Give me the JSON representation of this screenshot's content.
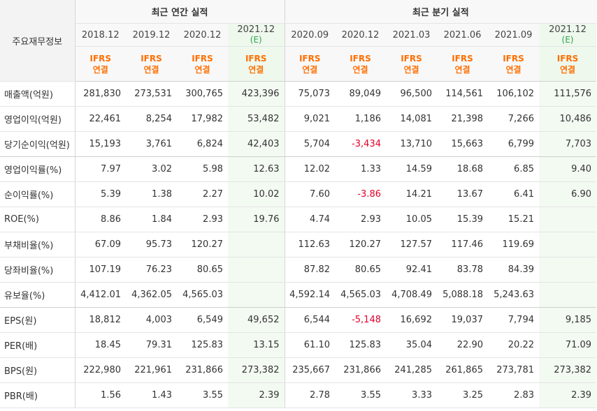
{
  "header": {
    "row_label": "주요재무정보",
    "annual_title": "최근 연간 실적",
    "quarterly_title": "최근 분기 실적",
    "periods": [
      "2018.12",
      "2019.12",
      "2020.12",
      "2021.12",
      "2020.09",
      "2020.12",
      "2021.03",
      "2021.06",
      "2021.09",
      "2021.12"
    ],
    "estimate_mark": "(E)",
    "basis_top": "IFRS",
    "basis_bottom": "연결"
  },
  "rows": [
    {
      "label": "매출액(억원)",
      "values": [
        "281,830",
        "273,531",
        "300,765",
        "423,396",
        "75,073",
        "89,049",
        "96,500",
        "114,561",
        "106,102",
        "111,576"
      ]
    },
    {
      "label": "영업이익(억원)",
      "values": [
        "22,461",
        "8,254",
        "17,982",
        "53,482",
        "9,021",
        "1,186",
        "14,081",
        "21,398",
        "7,266",
        "10,486"
      ]
    },
    {
      "label": "당기순이익(억원)",
      "values": [
        "15,193",
        "3,761",
        "6,824",
        "42,403",
        "5,704",
        "-3,434",
        "13,710",
        "15,663",
        "6,799",
        "7,703"
      ]
    },
    {
      "label": "영업이익률(%)",
      "values": [
        "7.97",
        "3.02",
        "5.98",
        "12.63",
        "12.02",
        "1.33",
        "14.59",
        "18.68",
        "6.85",
        "9.40"
      ]
    },
    {
      "label": "순이익률(%)",
      "values": [
        "5.39",
        "1.38",
        "2.27",
        "10.02",
        "7.60",
        "-3.86",
        "14.21",
        "13.67",
        "6.41",
        "6.90"
      ]
    },
    {
      "label": "ROE(%)",
      "values": [
        "8.86",
        "1.84",
        "2.93",
        "19.76",
        "4.74",
        "2.93",
        "10.05",
        "15.39",
        "15.21",
        ""
      ]
    },
    {
      "label": "부채비율(%)",
      "values": [
        "67.09",
        "95.73",
        "120.27",
        "",
        "112.63",
        "120.27",
        "127.57",
        "117.46",
        "119.69",
        ""
      ]
    },
    {
      "label": "당좌비율(%)",
      "values": [
        "107.19",
        "76.23",
        "80.65",
        "",
        "87.82",
        "80.65",
        "92.41",
        "83.78",
        "84.39",
        ""
      ]
    },
    {
      "label": "유보율(%)",
      "values": [
        "4,412.01",
        "4,362.05",
        "4,565.03",
        "",
        "4,592.14",
        "4,565.03",
        "4,708.49",
        "5,088.18",
        "5,243.63",
        ""
      ]
    },
    {
      "label": "EPS(원)",
      "values": [
        "18,812",
        "4,003",
        "6,549",
        "49,652",
        "6,544",
        "-5,148",
        "16,692",
        "19,037",
        "7,794",
        "9,185"
      ]
    },
    {
      "label": "PER(배)",
      "values": [
        "18.45",
        "79.31",
        "125.83",
        "13.15",
        "61.10",
        "125.83",
        "35.04",
        "22.90",
        "20.22",
        "71.09"
      ]
    },
    {
      "label": "BPS(원)",
      "values": [
        "222,980",
        "221,961",
        "231,866",
        "273,382",
        "235,667",
        "231,866",
        "241,285",
        "261,865",
        "273,781",
        "273,382"
      ]
    },
    {
      "label": "PBR(배)",
      "values": [
        "1.56",
        "1.43",
        "3.55",
        "2.39",
        "2.78",
        "3.55",
        "3.33",
        "3.25",
        "2.83",
        "2.39"
      ]
    }
  ],
  "colors": {
    "ifrs": "#ff6f00",
    "estimate": "#2aa54c",
    "negative": "#e0002a",
    "estimate_bg": "#f3faf2"
  }
}
